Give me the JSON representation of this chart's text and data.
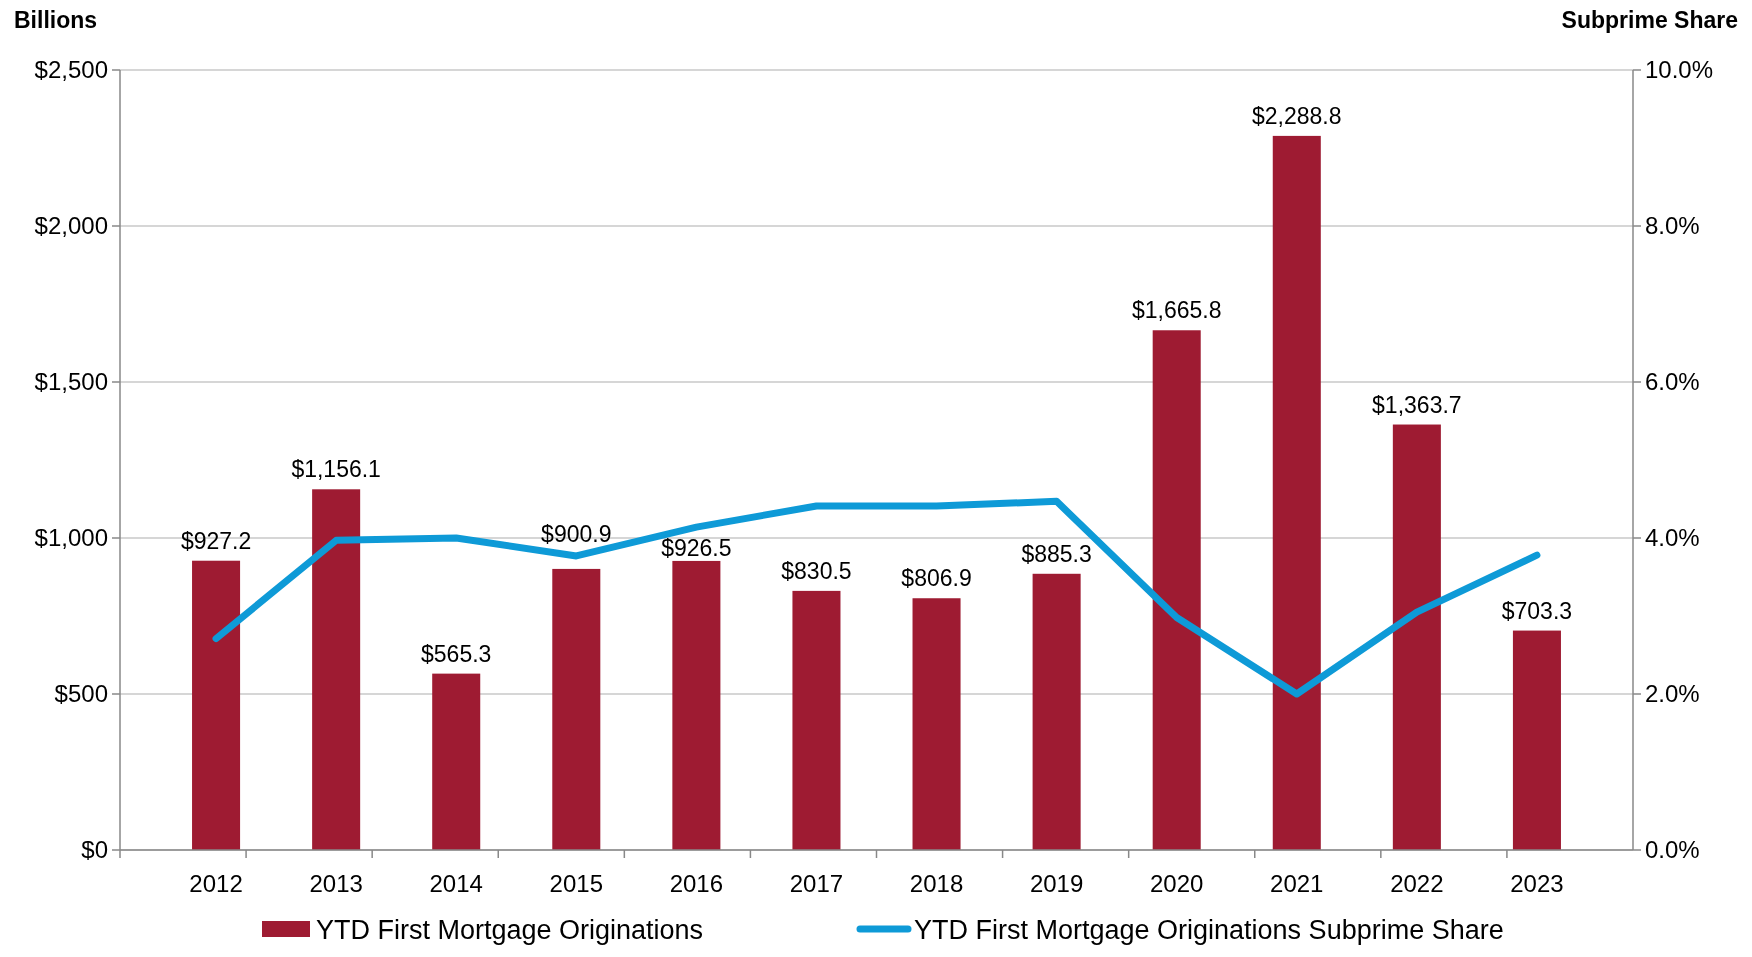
{
  "chart_data": {
    "type": "bar",
    "ylabel": "Billions",
    "y2label": "Subprime Share",
    "categories": [
      "2012",
      "2013",
      "2014",
      "2015",
      "2016",
      "2017",
      "2018",
      "2019",
      "2020",
      "2021",
      "2022",
      "2023"
    ],
    "series": [
      {
        "name": "YTD First Mortgage Originations",
        "color": "#9e1b32",
        "values": [
          927.2,
          1156.1,
          565.3,
          900.9,
          926.5,
          830.5,
          806.9,
          885.3,
          1665.8,
          2288.8,
          1363.7,
          703.3
        ],
        "data_labels": true,
        "value_labels": [
          "$927.2",
          "$1,156.1",
          "$565.3",
          "$900.9",
          "$926.5",
          "$830.5",
          "$806.9",
          "$885.3",
          "$1,665.8",
          "$2,288.8",
          "$1,363.7",
          "$703.3"
        ]
      },
      {
        "name": "YTD First Mortgage Originations Subprime Share",
        "type": "line",
        "axis": "y2",
        "color": "#0e9ad7",
        "values": [
          2.71,
          3.97,
          4.0,
          3.77,
          4.14,
          4.41,
          4.41,
          4.47,
          2.98,
          2.0,
          3.05,
          3.78
        ]
      }
    ],
    "ylim": [
      0,
      2500
    ],
    "yticks": [
      {
        "value": 0,
        "label": "$0"
      },
      {
        "value": 500,
        "label": "$500"
      },
      {
        "value": 1000,
        "label": "$1,000"
      },
      {
        "value": 1500,
        "label": "$1,500"
      },
      {
        "value": 2000,
        "label": "$2,000"
      },
      {
        "value": 2500,
        "label": "$2,500"
      }
    ],
    "y2lim": [
      0,
      10
    ],
    "y2ticks": [
      {
        "value": 0,
        "label": "0.0%"
      },
      {
        "value": 2,
        "label": "2.0%"
      },
      {
        "value": 4,
        "label": "4.0%"
      },
      {
        "value": 6,
        "label": "6.0%"
      },
      {
        "value": 8,
        "label": "8.0%"
      },
      {
        "value": 10,
        "label": "10.0%"
      }
    ],
    "grid": "y",
    "legend": "bottom",
    "marker": "none",
    "line_style": "solid"
  }
}
